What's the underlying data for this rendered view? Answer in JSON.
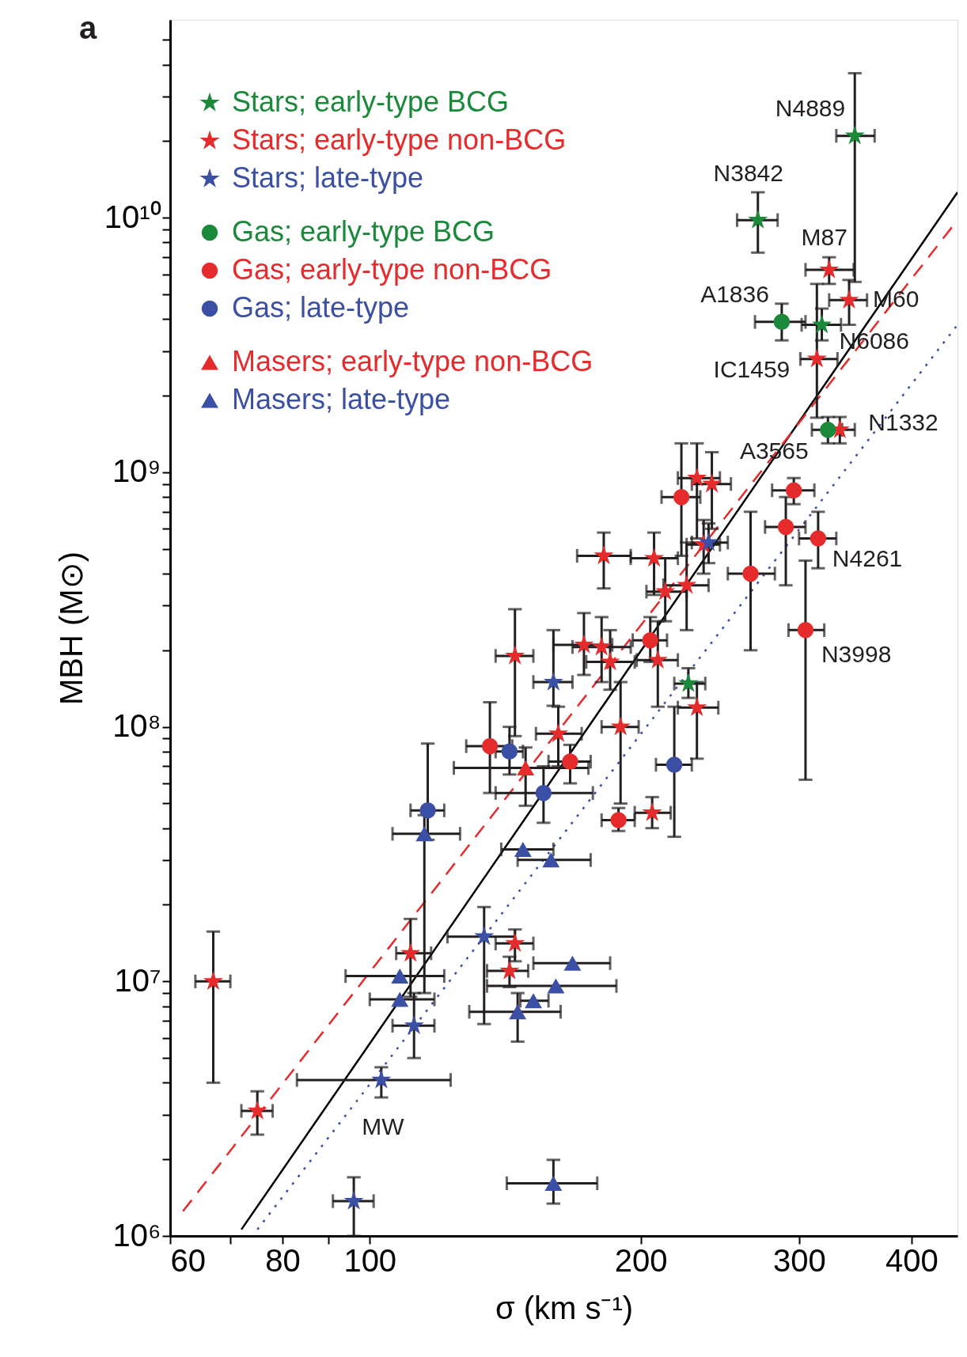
{
  "chart_data": {
    "type": "scatter",
    "xlabel": "σ (km s⁻¹)",
    "ylabel": "MBH (M⊙)",
    "log": "xy",
    "legend": "top left",
    "xlim": [
      60,
      450
    ],
    "ylim": [
      1000000.0,
      60000000000.0
    ],
    "xticks": [
      60,
      {
        "value": 70,
        "label": null
      },
      80,
      {
        "value": 90,
        "label": null
      },
      100,
      200,
      300,
      400
    ],
    "yticks": [
      {
        "value": 1000000.0,
        "label": "10⁶"
      },
      {
        "value": 2000000.0,
        "label": null
      },
      {
        "value": 3000000.0,
        "label": null
      },
      {
        "value": 4000000.0,
        "label": null
      },
      {
        "value": 5000000.0,
        "label": null
      },
      {
        "value": 6000000.0,
        "label": null
      },
      {
        "value": 7000000.0,
        "label": null
      },
      {
        "value": 8000000.0,
        "label": null
      },
      {
        "value": 9000000.0,
        "label": null
      },
      {
        "value": 10000000.0,
        "label": "10⁷"
      },
      {
        "value": 20000000.0,
        "label": null
      },
      {
        "value": 30000000.0,
        "label": null
      },
      {
        "value": 40000000.0,
        "label": null
      },
      {
        "value": 50000000.0,
        "label": null
      },
      {
        "value": 60000000.0,
        "label": null
      },
      {
        "value": 70000000.0,
        "label": null
      },
      {
        "value": 80000000.0,
        "label": null
      },
      {
        "value": 90000000.0,
        "label": null
      },
      {
        "value": 100000000.0,
        "label": "10⁸"
      },
      {
        "value": 200000000.0,
        "label": null
      },
      {
        "value": 300000000.0,
        "label": null
      },
      {
        "value": 400000000.0,
        "label": null
      },
      {
        "value": 500000000.0,
        "label": null
      },
      {
        "value": 600000000.0,
        "label": null
      },
      {
        "value": 700000000.0,
        "label": null
      },
      {
        "value": 800000000.0,
        "label": null
      },
      {
        "value": 900000000.0,
        "label": null
      },
      {
        "value": 1000000000.0,
        "label": "10⁹"
      },
      {
        "value": 2000000000.0,
        "label": null
      },
      {
        "value": 3000000000.0,
        "label": null
      },
      {
        "value": 4000000000.0,
        "label": null
      },
      {
        "value": 5000000000.0,
        "label": null
      },
      {
        "value": 6000000000.0,
        "label": null
      },
      {
        "value": 7000000000.0,
        "label": null
      },
      {
        "value": 8000000000.0,
        "label": null
      },
      {
        "value": 9000000000.0,
        "label": null
      },
      {
        "value": 10000000000.0,
        "label": "10¹⁰"
      },
      {
        "value": 20000000000.0,
        "label": null
      },
      {
        "value": 30000000000.0,
        "label": null
      },
      {
        "value": 40000000000.0,
        "label": null
      },
      {
        "value": 50000000000.0,
        "label": null
      }
    ],
    "series": [
      {
        "name": "Stars; early-type BCG",
        "color": "#1a8a3a",
        "marker": "star",
        "x": [
          346,
          270,
          318,
          226
        ],
        "values": [
          21000000000.0,
          9800000000.0,
          3800000000.0,
          148000000.0
        ],
        "errors": [
          [
            5600000000.0,
            37000000000.0
          ],
          [
            7300000000.0,
            12600000000.0
          ],
          [
            3300000000.0,
            4400000000.0
          ],
          [
            130000000.0,
            170000000.0
          ]
        ],
        "xerrors": [
          [
            330,
            364
          ],
          [
            256,
            284
          ],
          [
            302,
            334
          ],
          [
            218,
            236
          ]
        ]
      },
      {
        "name": "Stars; early-type non-BCG",
        "color": "#e52b2b",
        "marker": "star",
        "x": [
          324,
          341,
          314,
          333,
          231,
          240,
          235,
          182,
          207,
          213,
          225,
          145,
          173,
          181,
          185,
          209,
          231,
          162,
          190,
          206,
          111,
          145,
          143,
          67,
          75
        ],
        "values": [
          6250000000.0,
          4750000000.0,
          2790000000.0,
          1470000000.0,
          950000000.0,
          900000000.0,
          520000000.0,
          470000000.0,
          460000000.0,
          340000000.0,
          360000000.0,
          190000000.0,
          210000000.0,
          206000000.0,
          180000000.0,
          183000000.0,
          119000000.0,
          94000000.0,
          100000000.0,
          46000000.0,
          12900000.0,
          14100000.0,
          11000000.0,
          10000000.0,
          3100000.0
        ],
        "errors": [
          [
            5500000000.0,
            7000000000.0
          ],
          [
            3800000000.0,
            5700000000.0
          ],
          [
            1640000000.0,
            5500000000.0
          ],
          [
            1300000000.0,
            1650000000.0
          ],
          [
            550000000.0,
            1300000000.0
          ],
          [
            600000000.0,
            1200000000.0
          ],
          [
            400000000.0,
            650000000.0
          ],
          [
            350000000.0,
            580000000.0
          ],
          [
            330000000.0,
            580000000.0
          ],
          [
            260000000.0,
            460000000.0
          ],
          [
            240000000.0,
            530000000.0
          ],
          [
            92000000.0,
            290000000.0
          ],
          [
            160000000.0,
            280000000.0
          ],
          [
            150000000.0,
            270000000.0
          ],
          [
            140000000.0,
            240000000.0
          ],
          [
            120000000.0,
            260000000.0
          ],
          [
            75000000.0,
            150000000.0
          ],
          [
            70000000.0,
            120000000.0
          ],
          [
            50000000.0,
            150000000.0
          ],
          [
            40000000.0,
            53000000.0
          ],
          [
            8700000.0,
            17600000.0
          ],
          [
            12000000.0,
            16000000.0
          ],
          [
            9500000.0,
            12500000.0
          ],
          [
            4000000.0,
            15700000.0
          ],
          [
            2500000.0,
            3700000.0
          ]
        ],
        "xerrors": [
          [
            305,
            345
          ],
          [
            324,
            357
          ],
          [
            301,
            331
          ],
          [
            333,
            346
          ],
          [
            220,
            245
          ],
          [
            228,
            252
          ],
          [
            225,
            245
          ],
          [
            170,
            195
          ],
          [
            195,
            220
          ],
          [
            203,
            225
          ],
          [
            212,
            238
          ],
          [
            138,
            152
          ],
          [
            160,
            186
          ],
          [
            168,
            195
          ],
          [
            174,
            197
          ],
          [
            198,
            220
          ],
          [
            220,
            244
          ],
          [
            153,
            172
          ],
          [
            181,
            199
          ],
          [
            197,
            216
          ],
          [
            107,
            117
          ],
          [
            138,
            152
          ],
          [
            135,
            150
          ],
          [
            64,
            70
          ],
          [
            72,
            78
          ]
        ]
      },
      {
        "name": "Stars; late-type",
        "color": "#3b4fa5",
        "marker": "star",
        "x": [
          238,
          160,
          134,
          112,
          103,
          96
        ],
        "values": [
          530000000.0,
          150000000.0,
          15000000.0,
          6700000.0,
          4100000.0,
          1370000.0
        ],
        "errors": [
          [
            440000000.0,
            630000000.0
          ],
          [
            121000000.0,
            240000000.0
          ],
          [
            6800000.0,
            19600000.0
          ],
          [
            5000000.0,
            9000000.0
          ],
          [
            3500000.0,
            4600000.0
          ],
          [
            1000000.0,
            1700000.0
          ]
        ],
        "xerrors": [
          [
            228,
            250
          ],
          [
            152,
            168
          ],
          [
            122,
            145
          ],
          [
            106,
            118
          ],
          [
            83,
            123
          ],
          [
            91,
            101
          ]
        ]
      },
      {
        "name": "Gas; early-type BCG",
        "color": "#1a8a3a",
        "marker": "circle",
        "x": [
          287,
          323
        ],
        "values": [
          3900000000.0,
          1470000000.0
        ],
        "errors": [
          [
            3300000000.0,
            4600000000.0
          ],
          [
            1300000000.0,
            1650000000.0
          ]
        ],
        "xerrors": [
          [
            268,
            305
          ],
          [
            310,
            335
          ]
        ]
      },
      {
        "name": "Gas; early-type non-BCG",
        "color": "#e52b2b",
        "marker": "circle",
        "x": [
          222,
          296,
          290,
          315,
          265,
          305,
          205,
          136,
          167,
          189
        ],
        "values": [
          800000000.0,
          850000000.0,
          610000000.0,
          550000000.0,
          400000000.0,
          240000000.0,
          219000000.0,
          84000000.0,
          73000000.0,
          43000000.0
        ],
        "errors": [
          [
            470000000.0,
            1300000000.0
          ],
          [
            750000000.0,
            950000000.0
          ],
          [
            360000000.0,
            800000000.0
          ],
          [
            420000000.0,
            700000000.0
          ],
          [
            200000000.0,
            700000000.0
          ],
          [
            62000000.0,
            450000000.0
          ],
          [
            180000000.0,
            270000000.0
          ],
          [
            55000000.0,
            125000000.0
          ],
          [
            60000000.0,
            85000000.0
          ],
          [
            39000000.0,
            48000000.0
          ]
        ],
        "xerrors": [
          [
            211,
            233
          ],
          [
            280,
            312
          ],
          [
            275,
            305
          ],
          [
            300,
            330
          ],
          [
            250,
            282
          ],
          [
            292,
            320
          ],
          [
            196,
            214
          ],
          [
            128,
            144
          ],
          [
            158,
            176
          ],
          [
            181,
            197
          ]
        ]
      },
      {
        "name": "Gas; late-type",
        "color": "#3b4fa5",
        "marker": "circle",
        "x": [
          143,
          156,
          218,
          116
        ],
        "values": [
          80000000.0,
          55000000.0,
          71000000.0,
          47000000.0
        ],
        "errors": [
          [
            65000000.0,
            100000000.0
          ],
          [
            42000000.0,
            70000000.0
          ],
          [
            37000000.0,
            120000000.0
          ],
          [
            36000000.0,
            86000000.0
          ]
        ],
        "xerrors": [
          [
            138,
            148
          ],
          [
            138,
            177
          ],
          [
            208,
            228
          ],
          [
            111,
            121
          ]
        ]
      },
      {
        "name": "Masers; early-type non-BCG",
        "color": "#e52b2b",
        "marker": "triangle",
        "x": [
          149
        ],
        "values": [
          69000000.0
        ],
        "errors": [
          [
            49000000.0,
            83000000.0
          ]
        ],
        "xerrors": [
          [
            124,
            175
          ]
        ]
      },
      {
        "name": "Masers; late-type",
        "color": "#3b4fa5",
        "marker": "triangle",
        "x": [
          115,
          148,
          159,
          168,
          108,
          161,
          108,
          146,
          152,
          160
        ],
        "values": [
          38000000.0,
          33000000.0,
          30000000.0,
          11800000.0,
          10500000.0,
          9600000.0,
          8500000.0,
          7600000.0,
          8400000.0,
          1610000.0
        ],
        "errors": [
          [
            9000000.0,
            45000000.0
          ],
          null,
          null,
          null,
          null,
          null,
          null,
          [
            5800000.0,
            9000000.0
          ],
          null,
          [
            1340000.0,
            1990000.0
          ]
        ],
        "xerrors": [
          [
            106,
            126
          ],
          [
            140,
            160
          ],
          [
            146,
            176
          ],
          [
            152,
            185
          ],
          [
            94,
            121
          ],
          [
            135,
            188
          ],
          [
            100,
            118
          ],
          [
            129,
            163
          ],
          [
            147,
            158
          ],
          [
            142,
            179
          ]
        ]
      },
      {
        "type": "line",
        "color": "#000000",
        "line_style": "solid",
        "x": [
          72,
          450
        ],
        "values": [
          1060000.0,
          12600000000.0
        ]
      },
      {
        "type": "line",
        "color": "#e52b2b",
        "line_style": "dashed",
        "x": [
          62,
          450
        ],
        "values": [
          1250000.0,
          9800000000.0
        ]
      },
      {
        "type": "line",
        "color": "#3b4fa5",
        "line_style": "dotted",
        "x": [
          75,
          450
        ],
        "values": [
          1060000.0,
          3800000000.0
        ]
      }
    ],
    "annotations": [
      "a",
      {
        "text": "N4889",
        "x": 346,
        "y": 21000000000.0
      },
      {
        "text": "N3842",
        "x": 270,
        "y": 9800000000.0
      },
      {
        "text": "M87",
        "x": 324,
        "y": 6250000000.0
      },
      {
        "text": "A1836",
        "x": 287,
        "y": 3900000000.0
      },
      {
        "text": "M60",
        "x": 341,
        "y": 4750000000.0
      },
      {
        "text": "N6086",
        "x": 318,
        "y": 3800000000.0
      },
      {
        "text": "IC1459",
        "x": 314,
        "y": 2790000000.0
      },
      {
        "text": "N1332",
        "x": 333,
        "y": 1470000000.0
      },
      {
        "text": "A3565",
        "x": 323,
        "y": 1470000000.0
      },
      {
        "text": "N4261",
        "x": 315,
        "y": 550000000.0
      },
      {
        "text": "N3998",
        "x": 305,
        "y": 240000000.0
      },
      {
        "text": "MW",
        "x": 103,
        "y": 4100000.0
      }
    ]
  }
}
